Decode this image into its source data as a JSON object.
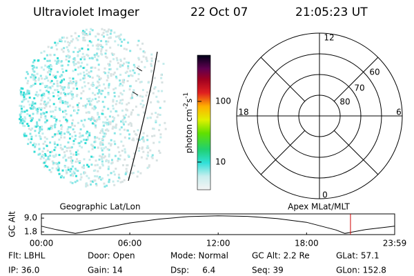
{
  "header": {
    "title": "Ultraviolet Imager",
    "date": "22 Oct 07",
    "time": "21:05:23 UT"
  },
  "colorbar": {
    "label": [
      "photon cm",
      "-2",
      "s",
      "-1"
    ],
    "log_scale": true,
    "lim": [
      3.5,
      577
    ],
    "ticks": [
      10,
      100
    ]
  },
  "polar": {
    "hour_labels": [
      "12",
      "18",
      "6",
      "0"
    ],
    "lat_labels": [
      "60",
      "70",
      "80"
    ]
  },
  "chart_data": {
    "type": "line",
    "y_label": "GC Alt",
    "annotations": [
      "Geographic Lat/Lon",
      "Apex MLat/MLT"
    ],
    "x": [
      0,
      1,
      2.3,
      4,
      6,
      8,
      10,
      12,
      14,
      16,
      18,
      20,
      20.6,
      22,
      23.98
    ],
    "values": [
      4.8,
      3.0,
      1.0,
      3.5,
      6.5,
      8.5,
      9.8,
      10.2,
      9.9,
      8.8,
      6.8,
      2.8,
      1.0,
      3.0,
      4.8
    ],
    "color": "#000000",
    "marker_x": 20.98,
    "marker_color": "#d00000",
    "xlim": [
      0,
      23.98
    ],
    "xticks": [
      {
        "value": 0,
        "label": "00:00"
      },
      {
        "value": 6,
        "label": "06:00"
      },
      {
        "value": 12,
        "label": "12:00"
      },
      {
        "value": 18,
        "label": "18:00"
      },
      {
        "value": 23.98,
        "label": "23:59"
      }
    ],
    "ylim": [
      0.4,
      11.2
    ],
    "yticks": [
      1.8,
      {
        "value": 9,
        "label": "9.0"
      }
    ]
  },
  "info": {
    "rows": [
      [
        "Flt: LBHL",
        "Door: Open",
        "Mode: Normal",
        "GC Alt: 2.2 Re",
        "GLat: 57.1"
      ],
      [
        "IP: 36.0",
        "Gain: 14",
        "Dsp:     6.4",
        "Seq: 39",
        "GLon: 152.8"
      ]
    ]
  }
}
